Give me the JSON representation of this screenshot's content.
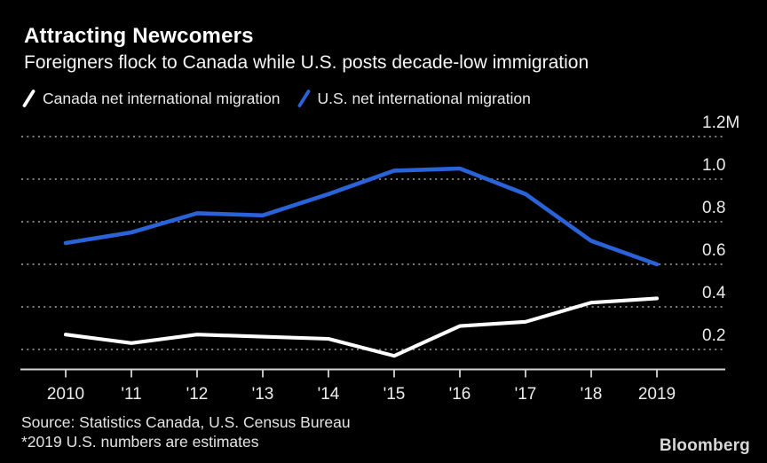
{
  "header": {
    "title": "Attracting Newcomers",
    "subtitle": "Foreigners flock to Canada while U.S. posts decade-low immigration"
  },
  "legend": {
    "items": [
      {
        "label": "Canada net international migration",
        "color": "#ffffff"
      },
      {
        "label": "U.S. net international migration",
        "color": "#2a62d8"
      }
    ]
  },
  "chart_data": {
    "type": "line",
    "x": [
      2010,
      2011,
      2012,
      2013,
      2014,
      2015,
      2016,
      2017,
      2018,
      2019
    ],
    "x_tick_labels": [
      "2010",
      "'11",
      "'12",
      "'13",
      "'14",
      "'15",
      "'16",
      "'17",
      "'18",
      "2019"
    ],
    "y_tick_values": [
      1.2,
      1.0,
      0.8,
      0.6,
      0.4,
      0.2
    ],
    "y_tick_labels": [
      "1.2M",
      "1.0",
      "0.8",
      "0.6",
      "0.4",
      "0.2"
    ],
    "unit": "millions of people per year",
    "series": [
      {
        "name": "Canada net international migration",
        "color": "#ffffff",
        "values": [
          0.27,
          0.23,
          0.27,
          0.26,
          0.25,
          0.17,
          0.31,
          0.33,
          0.42,
          0.44
        ]
      },
      {
        "name": "U.S. net international migration",
        "color": "#2a62d8",
        "values": [
          0.7,
          0.75,
          0.84,
          0.83,
          0.93,
          1.04,
          1.05,
          0.93,
          0.71,
          0.6
        ]
      }
    ],
    "ylim": [
      0.1,
      1.25
    ],
    "grid": "horizontal-dotted",
    "legend_position": "top-left"
  },
  "footer": {
    "source": "Source: Statistics Canada, U.S. Census Bureau",
    "note": "*2019 U.S. numbers are estimates",
    "brand": "Bloomberg"
  },
  "colors": {
    "background": "#000000",
    "canada_line": "#ffffff",
    "us_line": "#2a62d8",
    "grid": "#8f8f8f",
    "axis": "#d4d4d4",
    "text": "#ececec"
  }
}
